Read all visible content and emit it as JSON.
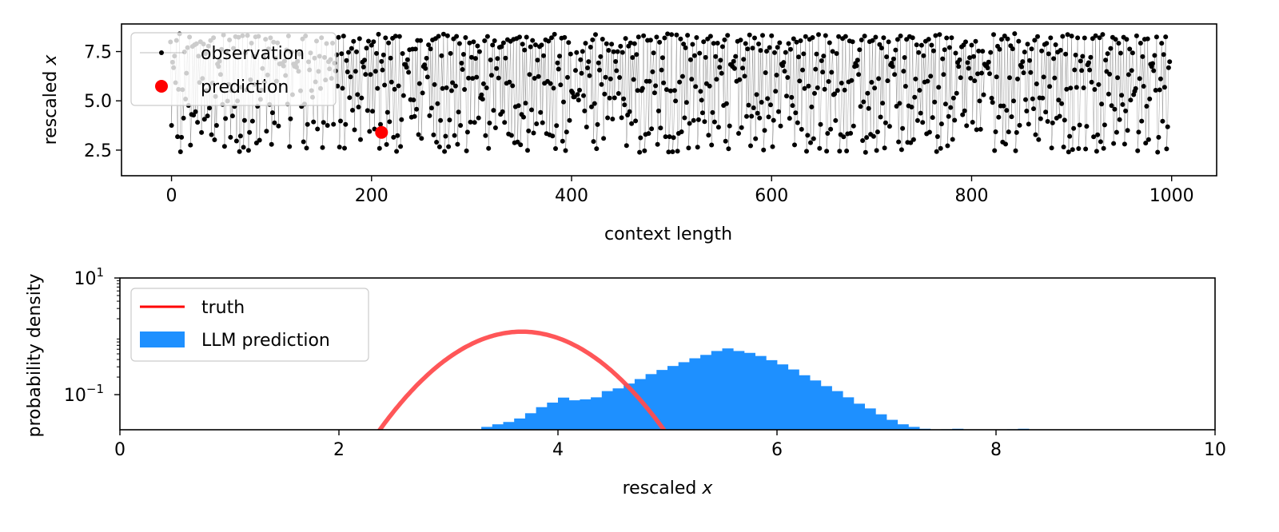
{
  "chart_data": [
    {
      "id": "top",
      "type": "line",
      "xlabel": "context length",
      "ylabel_prefix": "rescaled ",
      "ylabel_var": "x",
      "xlim": [
        -50,
        1045
      ],
      "ylim": [
        1.2,
        8.9
      ],
      "xticks": [
        0,
        200,
        400,
        600,
        800,
        1000
      ],
      "yticks": [
        2.5,
        5.0,
        7.5
      ],
      "ytick_labels": [
        "2.5",
        "5.0",
        "7.5"
      ],
      "observation": {
        "name": "observation",
        "n_points": 1000,
        "x_range": [
          -1,
          998
        ],
        "value_range": [
          1.6,
          8.5
        ],
        "marker_color": "#000000",
        "line_color": "#7f7f7f"
      },
      "prediction": {
        "name": "prediction",
        "x": 210,
        "y": 3.4,
        "color": "#ff0000"
      },
      "legend_placement": "upper-left",
      "grid": false
    },
    {
      "id": "bottom",
      "type": "histogram",
      "scale": "log",
      "xlabel_prefix": "rescaled ",
      "xlabel_var": "x",
      "ylabel": "probability density",
      "xlim": [
        0,
        10
      ],
      "ylim": [
        0.025,
        10
      ],
      "xticks": [
        0,
        2,
        4,
        6,
        8,
        10
      ],
      "yticks": [
        {
          "value": 10,
          "base": "10",
          "exp": "1"
        },
        {
          "value": 0.1,
          "base": "10",
          "exp": "−1"
        }
      ],
      "truth": {
        "name": "truth",
        "color": "#ff4d4f",
        "mean": 3.67,
        "peak": 1.2,
        "log_falloff": 1.0
      },
      "llm_prediction": {
        "name": "LLM prediction",
        "color": "#1e90ff",
        "bin_start": 3.3,
        "bin_width": 0.1,
        "values": [
          0.028,
          0.031,
          0.034,
          0.039,
          0.048,
          0.061,
          0.073,
          0.089,
          0.08,
          0.083,
          0.09,
          0.115,
          0.128,
          0.155,
          0.185,
          0.225,
          0.265,
          0.31,
          0.36,
          0.42,
          0.48,
          0.56,
          0.62,
          0.56,
          0.52,
          0.46,
          0.39,
          0.33,
          0.27,
          0.215,
          0.175,
          0.14,
          0.115,
          0.09,
          0.07,
          0.058,
          0.046,
          0.037,
          0.031,
          0.028,
          0.026,
          0.025,
          0.0255,
          0.026,
          0.025,
          0.024,
          0.0235,
          0.0245,
          0.0255,
          0.026,
          0.0245,
          0.024,
          0.023,
          0.0225,
          0.022,
          0.021
        ]
      },
      "legend_placement": "upper-left",
      "grid": false
    }
  ]
}
